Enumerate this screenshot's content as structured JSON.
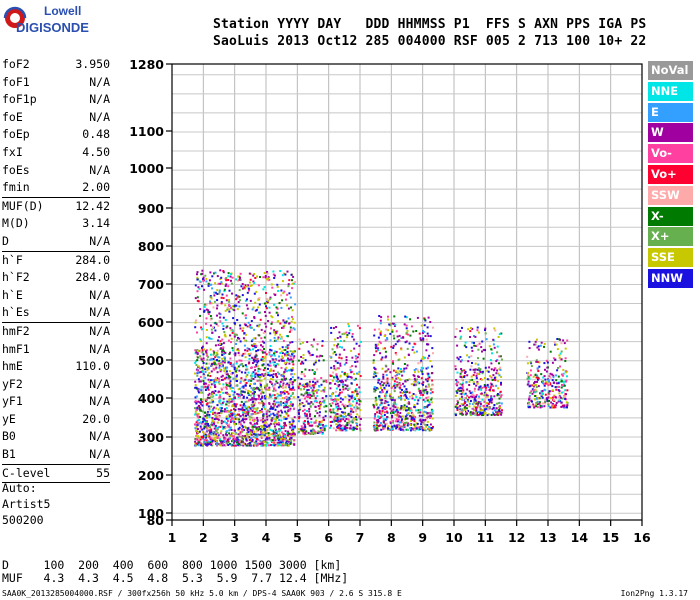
{
  "brand": {
    "line1": "Lowell",
    "line2": "DIGISONDE"
  },
  "header": {
    "line1": "Station YYYY DAY   DDD HHMMSS P1  FFS S AXN PPS IGA PS",
    "line2": "SaoLuis 2013 Oct12 285 004000 RSF 005 2 713 100 10+ 22"
  },
  "params": {
    "group1": [
      {
        "label": "foF2",
        "value": "3.950"
      },
      {
        "label": "foF1",
        "value": "N/A"
      },
      {
        "label": "foF1p",
        "value": "N/A"
      },
      {
        "label": "foE",
        "value": "N/A"
      },
      {
        "label": "foEp",
        "value": "0.48"
      },
      {
        "label": "fxI",
        "value": "4.50"
      },
      {
        "label": "foEs",
        "value": "N/A"
      },
      {
        "label": "fmin",
        "value": "2.00"
      }
    ],
    "group2": [
      {
        "label": "MUF(D)",
        "value": "12.42"
      },
      {
        "label": "M(D)",
        "value": "3.14"
      },
      {
        "label": "D",
        "value": "N/A"
      }
    ],
    "group3": [
      {
        "label": "h`F",
        "value": "284.0"
      },
      {
        "label": "h`F2",
        "value": "284.0"
      },
      {
        "label": "h`E",
        "value": "N/A"
      },
      {
        "label": "h`Es",
        "value": "N/A"
      }
    ],
    "group4": [
      {
        "label": "hmF2",
        "value": "N/A"
      },
      {
        "label": "hmF1",
        "value": "N/A"
      },
      {
        "label": "hmE",
        "value": "110.0"
      },
      {
        "label": "yF2",
        "value": "N/A"
      },
      {
        "label": "yF1",
        "value": "N/A"
      },
      {
        "label": "yE",
        "value": "20.0"
      },
      {
        "label": "B0",
        "value": "N/A"
      },
      {
        "label": "B1",
        "value": "N/A"
      }
    ],
    "group5": [
      {
        "label": "C-level",
        "value": "55"
      }
    ]
  },
  "misc": {
    "auto": "Auto:",
    "artist": "Artist5",
    "code": "500200"
  },
  "bottom": {
    "d_row": "D     100  200  400  600  800 1000 1500 3000 [km]",
    "muf_row": "MUF   4.3  4.3  4.5  4.8  5.3  5.9  7.7 12.4 [MHz]"
  },
  "footer": {
    "left": "SAA0K_2013285004000.RSF / 300fx256h 50 kHz 5.0 km / DPS-4 SAA0K 903 / 2.6 S 315.8 E",
    "right": "Ion2Png 1.3.17"
  },
  "legend": [
    {
      "label": "NoVal",
      "color": "#999999"
    },
    {
      "label": "NNE",
      "color": "#00e5e5"
    },
    {
      "label": "E",
      "color": "#33a0ff"
    },
    {
      "label": "W",
      "color": "#a000a0"
    },
    {
      "label": "Vo-",
      "color": "#ff40a0"
    },
    {
      "label": "Vo+",
      "color": "#ff0030"
    },
    {
      "label": "SSW",
      "color": "#ffaaaa"
    },
    {
      "label": "X-",
      "color": "#007a00"
    },
    {
      "label": "X+",
      "color": "#66b050"
    },
    {
      "label": "SSE",
      "color": "#c8c800"
    },
    {
      "label": "NNW",
      "color": "#1a10e0"
    }
  ],
  "chart_data": {
    "type": "scatter",
    "xlim": [
      1,
      16
    ],
    "ylim": [
      80,
      1280
    ],
    "x_ticks": [
      "1",
      "2",
      "3",
      "4",
      "5",
      "6",
      "7",
      "8",
      "9",
      "10",
      "11",
      "12",
      "13",
      "14",
      "15",
      "16"
    ],
    "y_ticks": [
      "1280",
      "1100",
      "1000",
      "900",
      "800",
      "700",
      "600",
      "500",
      "400",
      "300",
      "200",
      "100",
      "80"
    ],
    "grid": true,
    "echo_regions": [
      {
        "x": [
          1.7,
          4.9
        ],
        "h": [
          280,
          740
        ],
        "note": "dense F-trace cluster"
      },
      {
        "x": [
          5.0,
          5.9
        ],
        "h": [
          310,
          560
        ]
      },
      {
        "x": [
          6.0,
          7.0
        ],
        "h": [
          320,
          600
        ]
      },
      {
        "x": [
          7.4,
          9.3
        ],
        "h": [
          320,
          620
        ]
      },
      {
        "x": [
          10.0,
          11.5
        ],
        "h": [
          360,
          590
        ]
      },
      {
        "x": [
          12.3,
          13.6
        ],
        "h": [
          380,
          560
        ]
      }
    ]
  }
}
